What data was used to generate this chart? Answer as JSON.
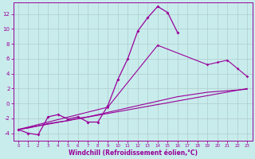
{
  "xlabel": "Windchill (Refroidissement éolien,°C)",
  "xlim": [
    -0.5,
    23.5
  ],
  "ylim": [
    -5.0,
    13.5
  ],
  "yticks": [
    -4,
    -2,
    0,
    2,
    4,
    6,
    8,
    10,
    12
  ],
  "xticks": [
    0,
    1,
    2,
    3,
    4,
    5,
    6,
    7,
    8,
    9,
    10,
    11,
    12,
    13,
    14,
    15,
    16,
    17,
    18,
    19,
    20,
    21,
    22,
    23
  ],
  "bg_color": "#c8ecec",
  "line_color": "#990099",
  "grid_color": "#b0cccc",
  "line1_x": [
    0,
    1,
    2,
    3,
    4,
    5,
    6,
    7,
    8,
    9,
    10,
    11,
    12,
    13,
    14,
    15,
    16
  ],
  "line1_y": [
    -3.5,
    -4.0,
    -4.2,
    -1.8,
    -1.5,
    -2.1,
    -1.8,
    -2.5,
    -2.5,
    -0.3,
    3.2,
    6.0,
    9.7,
    11.5,
    13.0,
    12.2,
    9.5
  ],
  "line2_x": [
    0,
    1,
    2,
    3,
    4,
    5,
    6,
    7,
    8,
    9,
    10,
    11,
    12,
    13,
    14,
    15,
    16,
    17,
    18,
    19,
    20,
    21,
    22,
    23
  ],
  "line2_y": [
    -3.5,
    -3.3,
    -3.0,
    -2.7,
    -2.5,
    -2.3,
    -2.0,
    -1.8,
    -1.5,
    -1.2,
    -0.9,
    -0.6,
    -0.3,
    0.0,
    0.3,
    0.6,
    0.9,
    1.1,
    1.3,
    1.5,
    1.6,
    1.7,
    1.8,
    1.9
  ],
  "line3_x": [
    0,
    23
  ],
  "line3_y": [
    -3.5,
    2.0
  ],
  "line4_x": [
    0,
    9,
    14,
    19,
    20,
    21,
    22,
    23
  ],
  "line4_y": [
    -3.5,
    -0.5,
    7.8,
    5.2,
    5.5,
    5.8,
    4.7,
    3.6
  ]
}
